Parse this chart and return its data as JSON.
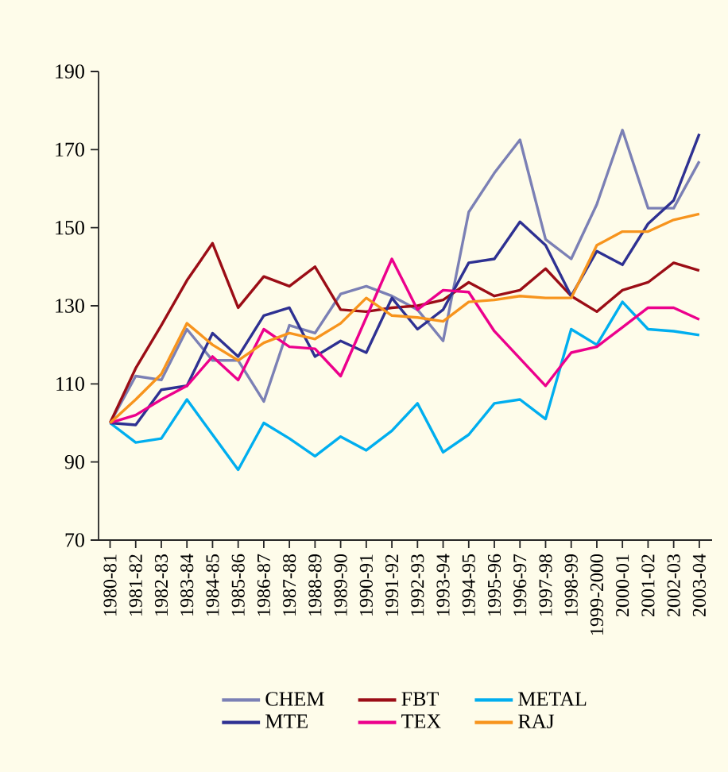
{
  "chart_data": {
    "type": "line",
    "categories": [
      "1980-81",
      "1981-82",
      "1982-83",
      "1983-84",
      "1984-85",
      "1985-86",
      "1986-87",
      "1987-88",
      "1988-89",
      "1989-90",
      "1990-91",
      "1991-92",
      "1992-93",
      "1993-94",
      "1994-95",
      "1995-96",
      "1996-97",
      "1997-98",
      "1998-99",
      "1999-2000",
      "2000-01",
      "2001-02",
      "2002-03",
      "2003-04"
    ],
    "series": [
      {
        "name": "CHEM",
        "color": "#7b80b5",
        "values": [
          100,
          112,
          111,
          124,
          116,
          116,
          105.5,
          125,
          123,
          133,
          135,
          132.5,
          129,
          121,
          154,
          164,
          172.5,
          147,
          142,
          156,
          175,
          155,
          155,
          167
        ]
      },
      {
        "name": "FBT",
        "color": "#9b0d16",
        "values": [
          100,
          114,
          125,
          136.5,
          146,
          129.5,
          137.5,
          135,
          140,
          129,
          128.5,
          129.5,
          130,
          131.5,
          136,
          132.5,
          134,
          139.5,
          132.5,
          128.5,
          134,
          136,
          141,
          139
        ]
      },
      {
        "name": "METAL",
        "color": "#00aeef",
        "values": [
          100,
          95,
          96,
          106,
          97,
          88,
          100,
          96,
          91.5,
          96.5,
          93,
          98,
          105,
          92.5,
          97,
          105,
          106,
          101,
          124,
          120,
          131,
          124,
          123.5,
          122.5
        ]
      },
      {
        "name": "MTE",
        "color": "#2e3192",
        "values": [
          100,
          99.5,
          108.5,
          109.5,
          123,
          117,
          127.5,
          129.5,
          117,
          121,
          118,
          132,
          124,
          129,
          141,
          142,
          151.5,
          145.5,
          132.5,
          144,
          140.5,
          151,
          157,
          174
        ]
      },
      {
        "name": "TEX",
        "color": "#ec008c",
        "values": [
          100,
          102,
          106,
          109.5,
          117,
          111,
          124,
          119.5,
          119,
          112,
          127,
          142,
          129,
          134,
          133.5,
          123.5,
          116.5,
          109.5,
          118,
          119.5,
          124.5,
          129.5,
          129.5,
          126.5
        ]
      },
      {
        "name": "RAJ",
        "color": "#f7941d",
        "values": [
          100,
          106,
          112.5,
          125.5,
          120,
          116,
          120.5,
          123,
          121.5,
          125.5,
          132,
          127.5,
          127,
          126,
          131,
          131.5,
          132.5,
          132,
          132,
          145.5,
          149,
          149,
          152,
          153.5
        ]
      }
    ],
    "ylim": [
      70,
      190
    ],
    "yticks": [
      70,
      90,
      110,
      130,
      150,
      170,
      190
    ],
    "grid": false,
    "legend": "bottom",
    "marker": "none",
    "line_style": "solid"
  }
}
